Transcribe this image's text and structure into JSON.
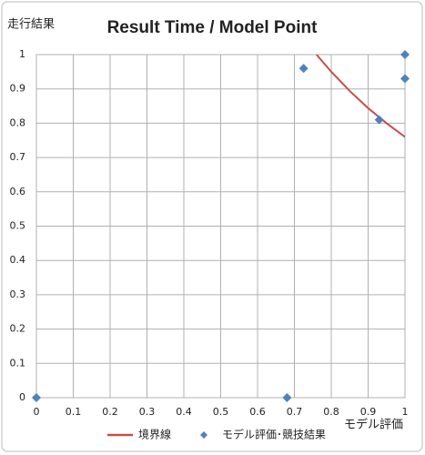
{
  "chart_data": {
    "type": "scatter",
    "title": "Result Time / Model Point",
    "y_label": "走行結果",
    "x_label": "モデル評価",
    "xlim": [
      0,
      1
    ],
    "ylim": [
      0,
      1
    ],
    "xticks": [
      0,
      0.1,
      0.2,
      0.3,
      0.4,
      0.5,
      0.6,
      0.7,
      0.8,
      0.9,
      1
    ],
    "yticks": [
      0,
      0.1,
      0.2,
      0.3,
      0.4,
      0.5,
      0.6,
      0.7,
      0.8,
      0.9,
      1
    ],
    "grid": true,
    "series": [
      {
        "name": "境界線",
        "kind": "line",
        "color": "#c0504d",
        "x": [
          0.76,
          0.8,
          0.85,
          0.9,
          0.95,
          1
        ],
        "values": [
          1,
          0.95,
          0.894,
          0.844,
          0.8,
          0.76
        ]
      },
      {
        "name": "モデル評価･競技結果",
        "kind": "scatter",
        "color": "#4f81bd",
        "x": [
          0,
          0.68,
          0.725,
          0.93,
          1,
          1
        ],
        "values": [
          0,
          0,
          0.96,
          0.81,
          1,
          0.93
        ]
      }
    ]
  }
}
